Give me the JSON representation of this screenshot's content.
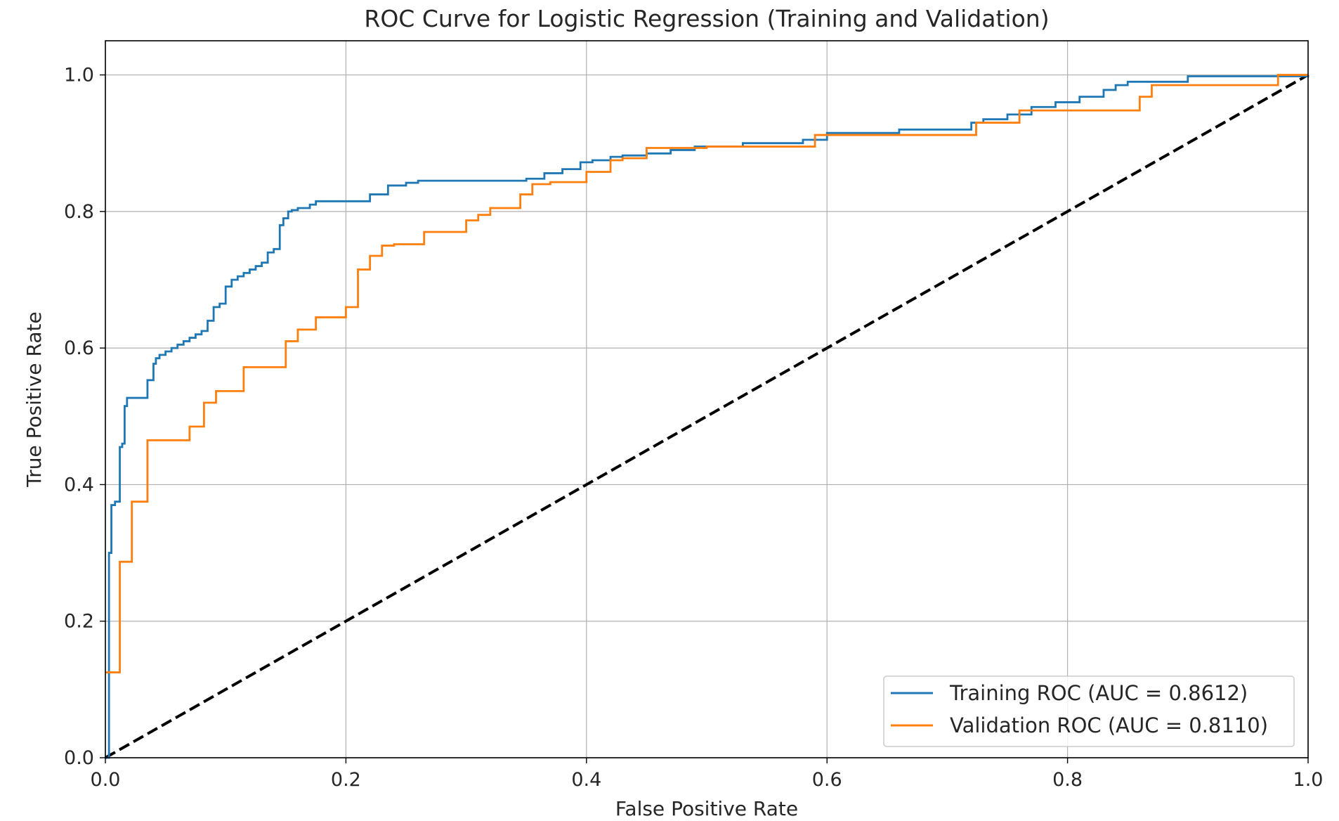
{
  "chart_data": {
    "type": "line",
    "title": "ROC Curve for Logistic Regression (Training and Validation)",
    "xlabel": "False Positive Rate",
    "ylabel": "True Positive Rate",
    "xlim": [
      0,
      1
    ],
    "ylim": [
      0,
      1.05
    ],
    "xticks": [
      "0.0",
      "0.2",
      "0.4",
      "0.6",
      "0.8",
      "1.0"
    ],
    "yticks": [
      "0.0",
      "0.2",
      "0.4",
      "0.6",
      "0.8",
      "1.0"
    ],
    "grid": true,
    "legend_position": "lower-right",
    "series": [
      {
        "name": "Training ROC (AUC = 0.8612)",
        "color": "#1f77b4",
        "style": "step",
        "x": [
          0.0,
          0.003,
          0.005,
          0.008,
          0.012,
          0.014,
          0.016,
          0.018,
          0.02,
          0.022,
          0.025,
          0.028,
          0.035,
          0.04,
          0.042,
          0.045,
          0.05,
          0.055,
          0.06,
          0.065,
          0.07,
          0.075,
          0.08,
          0.085,
          0.09,
          0.095,
          0.1,
          0.105,
          0.11,
          0.115,
          0.12,
          0.125,
          0.13,
          0.135,
          0.14,
          0.145,
          0.148,
          0.152,
          0.155,
          0.16,
          0.17,
          0.175,
          0.19,
          0.22,
          0.235,
          0.25,
          0.26,
          0.35,
          0.365,
          0.38,
          0.395,
          0.405,
          0.42,
          0.43,
          0.45,
          0.47,
          0.49,
          0.53,
          0.58,
          0.6,
          0.66,
          0.72,
          0.73,
          0.75,
          0.77,
          0.79,
          0.81,
          0.83,
          0.84,
          0.85,
          0.9,
          1.0
        ],
        "y": [
          0.0,
          0.3,
          0.37,
          0.375,
          0.455,
          0.46,
          0.515,
          0.527,
          0.527,
          0.527,
          0.527,
          0.527,
          0.553,
          0.577,
          0.585,
          0.59,
          0.595,
          0.6,
          0.605,
          0.61,
          0.615,
          0.62,
          0.625,
          0.64,
          0.66,
          0.665,
          0.69,
          0.7,
          0.705,
          0.71,
          0.715,
          0.72,
          0.725,
          0.74,
          0.745,
          0.78,
          0.79,
          0.8,
          0.802,
          0.805,
          0.81,
          0.815,
          0.815,
          0.825,
          0.838,
          0.842,
          0.845,
          0.848,
          0.856,
          0.862,
          0.872,
          0.875,
          0.88,
          0.882,
          0.885,
          0.89,
          0.895,
          0.9,
          0.905,
          0.915,
          0.92,
          0.93,
          0.935,
          0.942,
          0.953,
          0.96,
          0.968,
          0.978,
          0.985,
          0.99,
          0.998,
          1.0
        ]
      },
      {
        "name": "Validation ROC (AUC = 0.8110)",
        "color": "#ff7f0e",
        "style": "step",
        "x": [
          0.0,
          0.012,
          0.022,
          0.035,
          0.07,
          0.082,
          0.092,
          0.115,
          0.15,
          0.16,
          0.175,
          0.2,
          0.21,
          0.22,
          0.23,
          0.24,
          0.265,
          0.3,
          0.31,
          0.32,
          0.345,
          0.355,
          0.37,
          0.4,
          0.42,
          0.43,
          0.45,
          0.47,
          0.485,
          0.5,
          0.59,
          0.6,
          0.724,
          0.76,
          0.86,
          0.87,
          0.975,
          0.98,
          1.0
        ],
        "y": [
          0.125,
          0.287,
          0.375,
          0.465,
          0.485,
          0.52,
          0.537,
          0.572,
          0.61,
          0.627,
          0.645,
          0.66,
          0.715,
          0.735,
          0.75,
          0.752,
          0.77,
          0.787,
          0.795,
          0.805,
          0.825,
          0.84,
          0.843,
          0.858,
          0.875,
          0.878,
          0.893,
          0.893,
          0.893,
          0.895,
          0.912,
          0.912,
          0.93,
          0.948,
          0.968,
          0.985,
          1.0,
          1.0,
          1.0
        ]
      },
      {
        "name": "",
        "color": "#000000",
        "style": "dashed",
        "x": [
          0,
          1
        ],
        "y": [
          0,
          1
        ]
      }
    ]
  }
}
